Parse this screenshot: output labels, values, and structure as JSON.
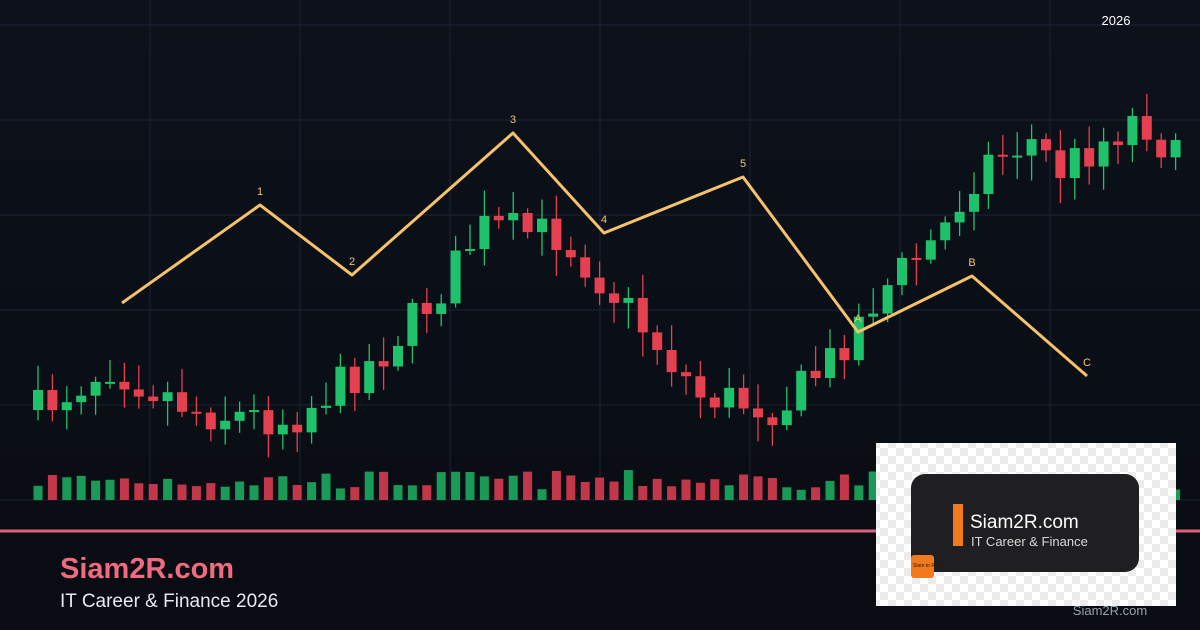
{
  "header": {
    "year": "2026"
  },
  "waves": {
    "labels": [
      "1",
      "2",
      "3",
      "4",
      "5",
      "A",
      "B",
      "C"
    ]
  },
  "footer": {
    "brand": "Siam2R.com",
    "tagline": "IT Career & Finance 2026"
  },
  "logo": {
    "brand": "Siam2R.com",
    "tagline": "IT Career & Finance",
    "badge": "Siam to Rich",
    "watermark": "Siam2R.com"
  }
}
